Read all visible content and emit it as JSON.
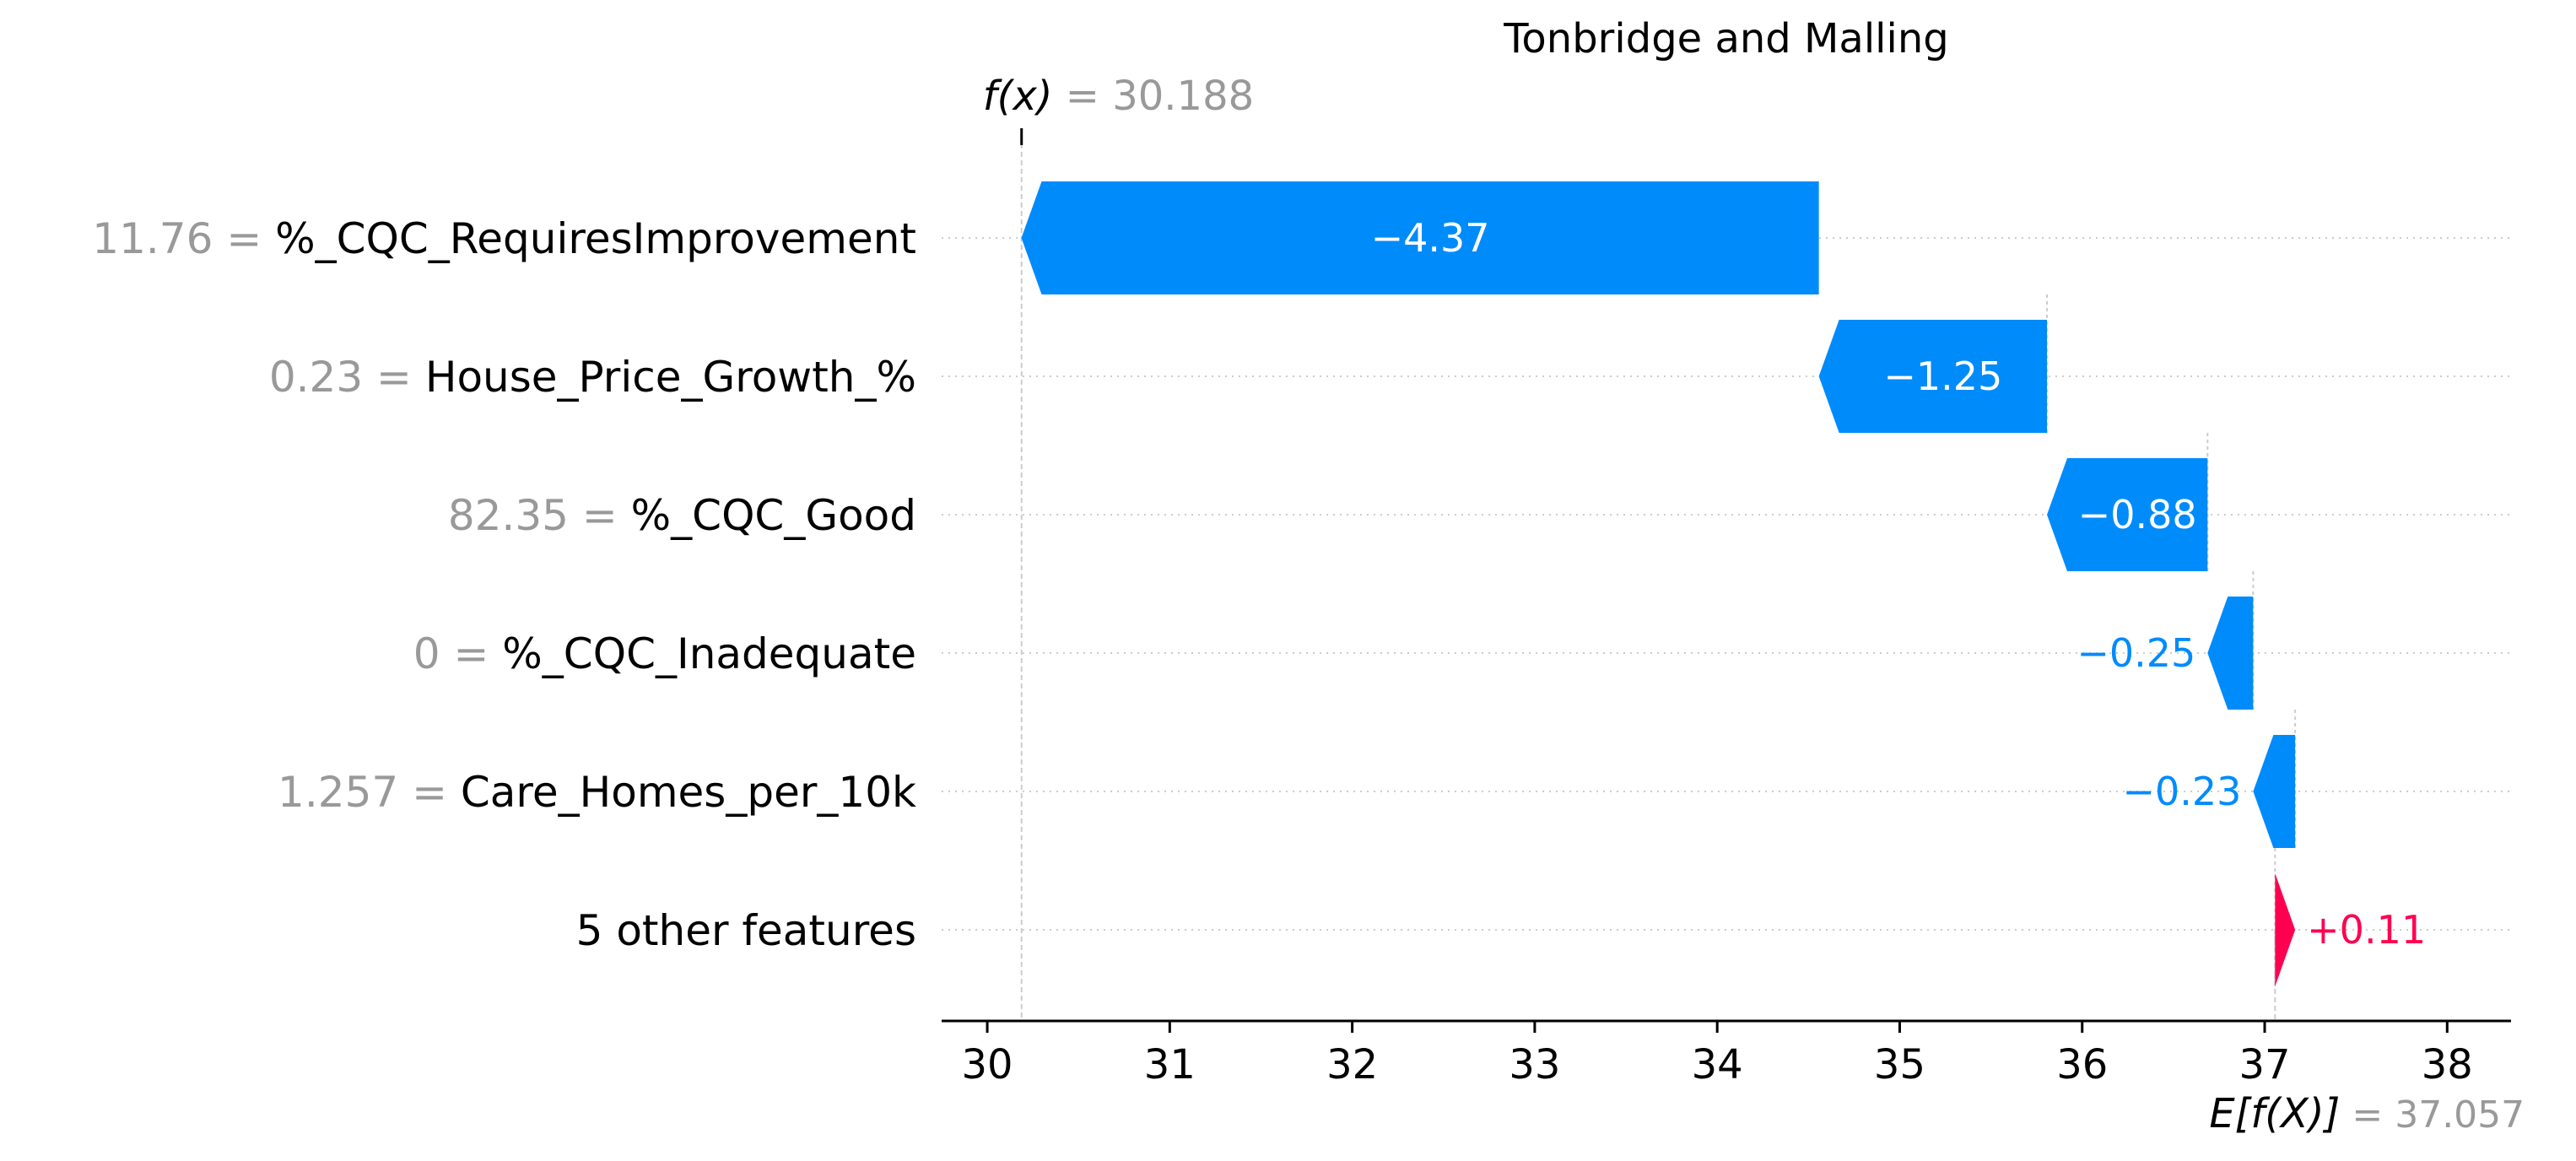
{
  "chart_data": {
    "type": "waterfall",
    "title": "Tonbridge and Malling",
    "fx_label": "f(x)",
    "fx_value_text": "= 30.188",
    "fx_value": 30.188,
    "base_label": "E[f(X)]",
    "base_value_text": "= 37.057",
    "base_value": 37.057,
    "xlim": [
      29.75,
      38.35
    ],
    "x_ticks": [
      30,
      31,
      32,
      33,
      34,
      35,
      36,
      37,
      38
    ],
    "features": [
      {
        "value_text": "11.76 =",
        "name": "%_CQC_RequiresImprovement",
        "contribution": -4.37,
        "label": "−4.37"
      },
      {
        "value_text": "0.23 =",
        "name": "House_Price_Growth_%",
        "contribution": -1.25,
        "label": "−1.25"
      },
      {
        "value_text": "82.35 =",
        "name": "%_CQC_Good",
        "contribution": -0.88,
        "label": "−0.88"
      },
      {
        "value_text": "0 =",
        "name": "%_CQC_Inadequate",
        "contribution": -0.25,
        "label": "−0.25"
      },
      {
        "value_text": "1.257 =",
        "name": "Care_Homes_per_10k",
        "contribution": -0.23,
        "label": "−0.23"
      },
      {
        "value_text": "",
        "name": "5 other features",
        "contribution": 0.11,
        "label": "+0.11"
      }
    ],
    "colors": {
      "negative": "#008bfb",
      "positive": "#ff0051",
      "feature_value": "#999999",
      "feature_name": "#000000",
      "axis": "#000000",
      "gridline": "#cccccc"
    }
  }
}
